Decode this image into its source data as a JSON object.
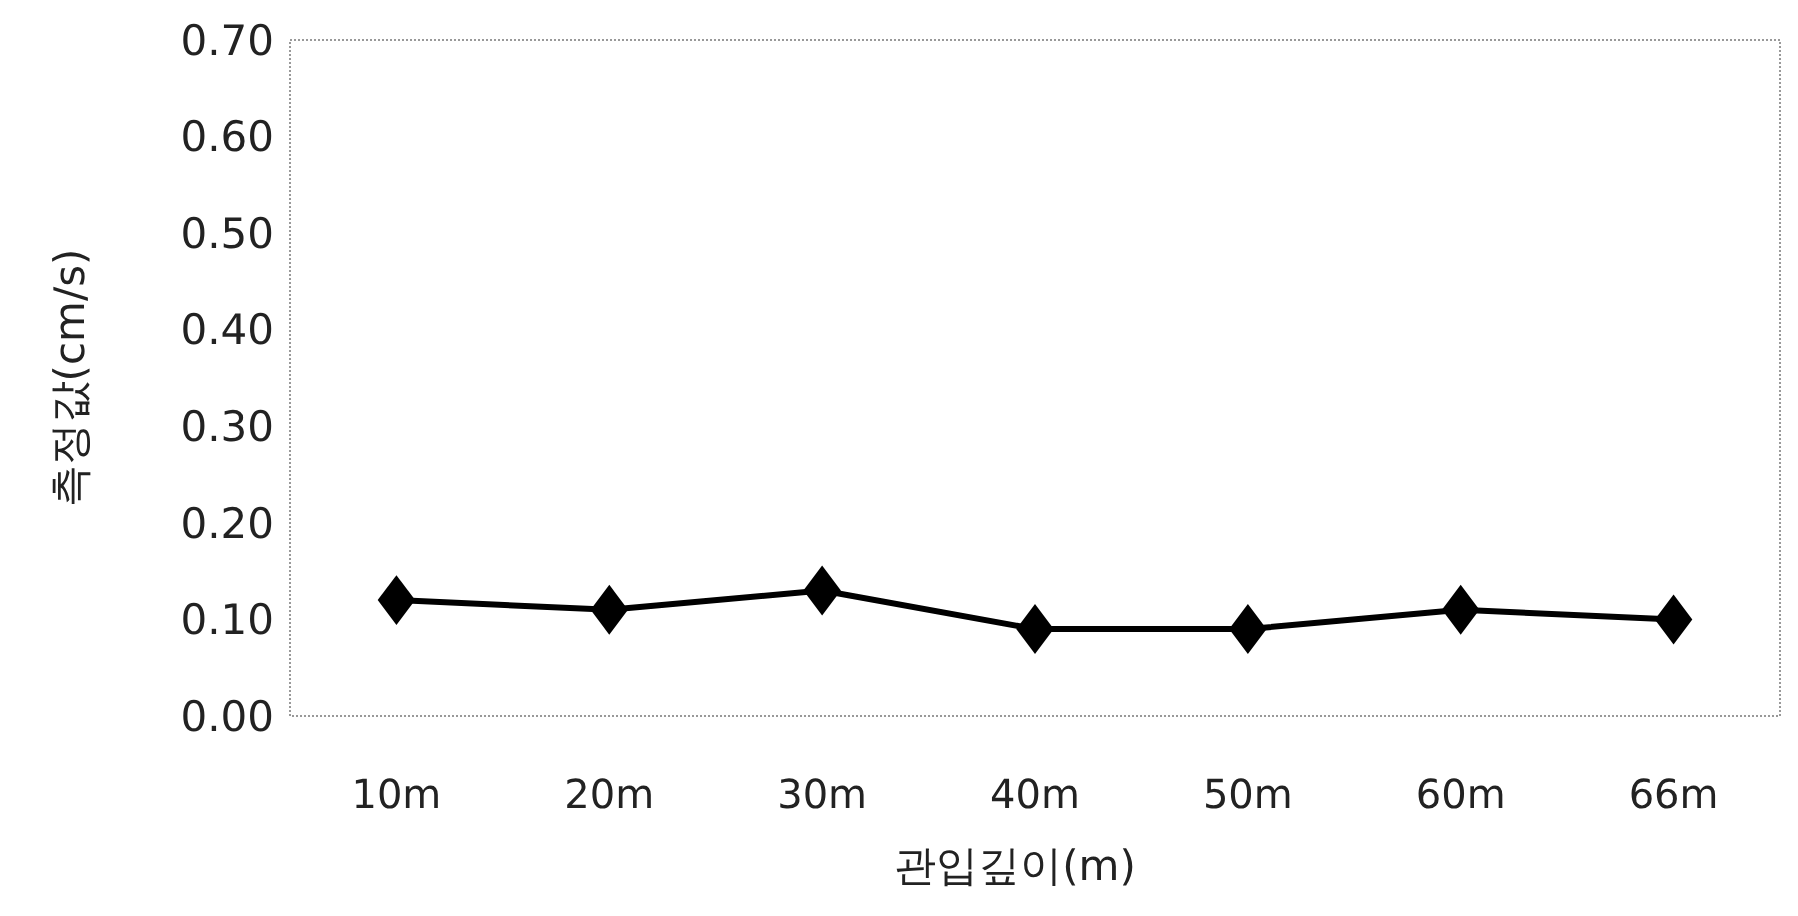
{
  "chart_data": {
    "type": "line",
    "xlabel": "관입깊이(m)",
    "ylabel": "측정값(cm/s)",
    "categories": [
      "10m",
      "20m",
      "30m",
      "40m",
      "50m",
      "60m",
      "66m"
    ],
    "series": [
      {
        "color": "#000000",
        "values": [
          0.12,
          0.11,
          0.13,
          0.09,
          0.09,
          0.11,
          0.1
        ]
      }
    ],
    "ylim": [
      0,
      0.7
    ],
    "yticks": [
      {
        "value": 0,
        "label": "0.00"
      },
      {
        "value": 0.1,
        "label": "0.10"
      },
      {
        "value": 0.2,
        "label": "0.20"
      },
      {
        "value": 0.3,
        "label": "0.30"
      },
      {
        "value": 0.4,
        "label": "0.40"
      },
      {
        "value": 0.5,
        "label": "0.50"
      },
      {
        "value": 0.6,
        "label": "0.60"
      },
      {
        "value": 0.7,
        "label": "0.70"
      }
    ],
    "grid": false,
    "marker": "diamond",
    "line_style": "solid"
  }
}
